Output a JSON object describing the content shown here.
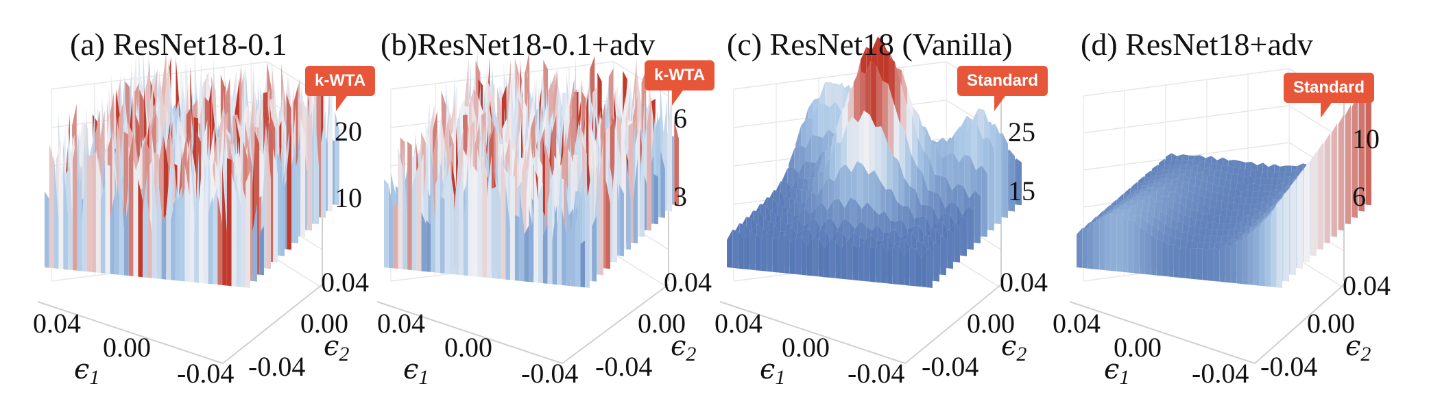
{
  "colors": {
    "badge": "#e8563a",
    "surface_low": "#2c4f9c",
    "surface_mid": "#a9c7e6",
    "surface_high": "#c0392b"
  },
  "panels": [
    {
      "title": "(a) ResNet18-0.1",
      "badge": "k-WTA",
      "z_ticks": [
        "20",
        "10"
      ],
      "e2_ticks": [
        "0.04",
        "0.00",
        "-0.04"
      ],
      "e1_ticks": [
        "0.04",
        "0.00",
        "-0.04"
      ],
      "e1": "ϵ",
      "e1_sub": "1",
      "e2": "ϵ",
      "e2_sub": "2"
    },
    {
      "title": "(b)ResNet18-0.1+adv",
      "badge": "k-WTA",
      "z_ticks": [
        "6",
        "3"
      ],
      "e2_ticks": [
        "0.04",
        "0.00",
        "-0.04"
      ],
      "e1_ticks": [
        "0.04",
        "0.00",
        "-0.04"
      ],
      "e1": "ϵ",
      "e1_sub": "1",
      "e2": "ϵ",
      "e2_sub": "2"
    },
    {
      "title": "(c) ResNet18 (Vanilla)",
      "badge": "Standard",
      "z_ticks": [
        "25",
        "15"
      ],
      "e2_ticks": [
        "0.04",
        "0.00",
        "-0.04"
      ],
      "e1_ticks": [
        "0.04",
        "0.00",
        "-0.04"
      ],
      "e1": "ϵ",
      "e1_sub": "1",
      "e2": "ϵ",
      "e2_sub": "2"
    },
    {
      "title": "(d) ResNet18+adv",
      "badge": "Standard",
      "z_ticks": [
        "10",
        "6"
      ],
      "e2_ticks": [
        "0.04",
        "0.00",
        "-0.04"
      ],
      "e1_ticks": [
        "0.04",
        "0.00",
        "-0.04"
      ],
      "e1": "ϵ",
      "e1_sub": "1",
      "e2": "ϵ",
      "e2_sub": "2"
    }
  ],
  "chart_data": [
    {
      "type": "surface",
      "title": "(a) ResNet18-0.1",
      "xlabel": "ϵ1",
      "ylabel": "ϵ2",
      "xlim": [
        -0.04,
        0.04
      ],
      "ylim": [
        -0.04,
        0.04
      ],
      "z_ticks": [
        10,
        20
      ],
      "surface": "jagged"
    },
    {
      "type": "surface",
      "title": "(b)ResNet18-0.1+adv",
      "xlabel": "ϵ1",
      "ylabel": "ϵ2",
      "xlim": [
        -0.04,
        0.04
      ],
      "ylim": [
        -0.04,
        0.04
      ],
      "z_ticks": [
        3,
        6
      ],
      "surface": "jagged"
    },
    {
      "type": "surface",
      "title": "(c) ResNet18 (Vanilla)",
      "xlabel": "ϵ1",
      "ylabel": "ϵ2",
      "xlim": [
        -0.04,
        0.04
      ],
      "ylim": [
        -0.04,
        0.04
      ],
      "z_ticks": [
        15,
        25
      ],
      "surface": "smooth-peaked"
    },
    {
      "type": "surface",
      "title": "(d) ResNet18+adv",
      "xlabel": "ϵ1",
      "ylabel": "ϵ2",
      "xlim": [
        -0.04,
        0.04
      ],
      "ylim": [
        -0.04,
        0.04
      ],
      "z_ticks": [
        6,
        10
      ],
      "surface": "smooth-bowl"
    }
  ]
}
